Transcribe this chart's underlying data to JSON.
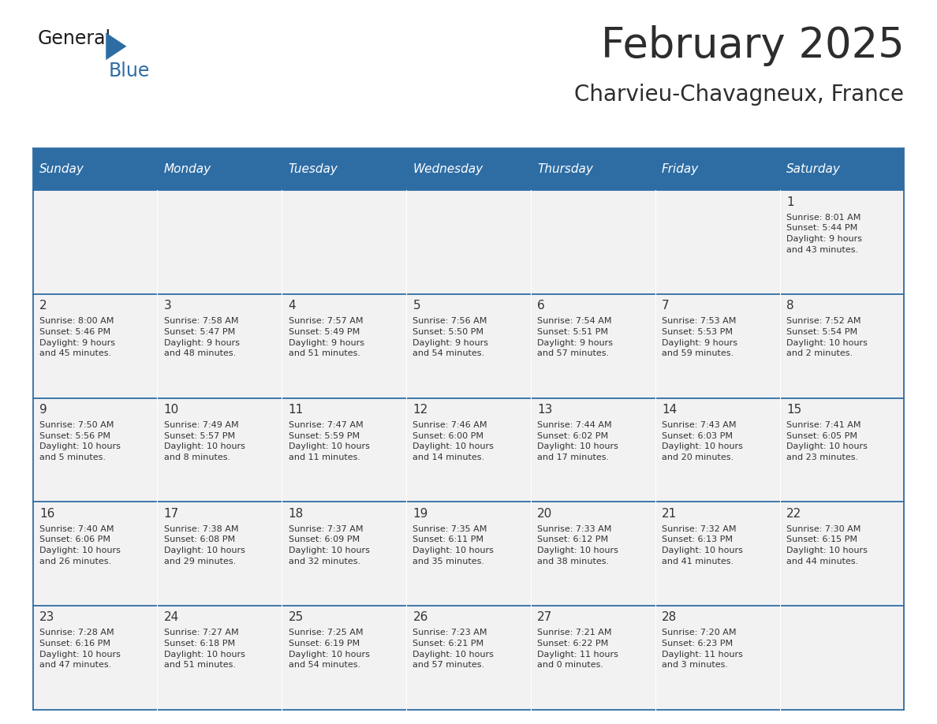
{
  "title": "February 2025",
  "subtitle": "Charvieu-Chavagneux, France",
  "header_bg": "#2E6DA4",
  "header_text": "#FFFFFF",
  "cell_bg": "#F2F2F2",
  "border_color": "#2E6DA4",
  "text_color": "#333333",
  "days_of_week": [
    "Sunday",
    "Monday",
    "Tuesday",
    "Wednesday",
    "Thursday",
    "Friday",
    "Saturday"
  ],
  "calendar": [
    [
      null,
      null,
      null,
      null,
      null,
      null,
      {
        "day": "1",
        "sunrise": "8:01 AM",
        "sunset": "5:44 PM",
        "daylight": "9 hours\nand 43 minutes."
      }
    ],
    [
      {
        "day": "2",
        "sunrise": "8:00 AM",
        "sunset": "5:46 PM",
        "daylight": "9 hours\nand 45 minutes."
      },
      {
        "day": "3",
        "sunrise": "7:58 AM",
        "sunset": "5:47 PM",
        "daylight": "9 hours\nand 48 minutes."
      },
      {
        "day": "4",
        "sunrise": "7:57 AM",
        "sunset": "5:49 PM",
        "daylight": "9 hours\nand 51 minutes."
      },
      {
        "day": "5",
        "sunrise": "7:56 AM",
        "sunset": "5:50 PM",
        "daylight": "9 hours\nand 54 minutes."
      },
      {
        "day": "6",
        "sunrise": "7:54 AM",
        "sunset": "5:51 PM",
        "daylight": "9 hours\nand 57 minutes."
      },
      {
        "day": "7",
        "sunrise": "7:53 AM",
        "sunset": "5:53 PM",
        "daylight": "9 hours\nand 59 minutes."
      },
      {
        "day": "8",
        "sunrise": "7:52 AM",
        "sunset": "5:54 PM",
        "daylight": "10 hours\nand 2 minutes."
      }
    ],
    [
      {
        "day": "9",
        "sunrise": "7:50 AM",
        "sunset": "5:56 PM",
        "daylight": "10 hours\nand 5 minutes."
      },
      {
        "day": "10",
        "sunrise": "7:49 AM",
        "sunset": "5:57 PM",
        "daylight": "10 hours\nand 8 minutes."
      },
      {
        "day": "11",
        "sunrise": "7:47 AM",
        "sunset": "5:59 PM",
        "daylight": "10 hours\nand 11 minutes."
      },
      {
        "day": "12",
        "sunrise": "7:46 AM",
        "sunset": "6:00 PM",
        "daylight": "10 hours\nand 14 minutes."
      },
      {
        "day": "13",
        "sunrise": "7:44 AM",
        "sunset": "6:02 PM",
        "daylight": "10 hours\nand 17 minutes."
      },
      {
        "day": "14",
        "sunrise": "7:43 AM",
        "sunset": "6:03 PM",
        "daylight": "10 hours\nand 20 minutes."
      },
      {
        "day": "15",
        "sunrise": "7:41 AM",
        "sunset": "6:05 PM",
        "daylight": "10 hours\nand 23 minutes."
      }
    ],
    [
      {
        "day": "16",
        "sunrise": "7:40 AM",
        "sunset": "6:06 PM",
        "daylight": "10 hours\nand 26 minutes."
      },
      {
        "day": "17",
        "sunrise": "7:38 AM",
        "sunset": "6:08 PM",
        "daylight": "10 hours\nand 29 minutes."
      },
      {
        "day": "18",
        "sunrise": "7:37 AM",
        "sunset": "6:09 PM",
        "daylight": "10 hours\nand 32 minutes."
      },
      {
        "day": "19",
        "sunrise": "7:35 AM",
        "sunset": "6:11 PM",
        "daylight": "10 hours\nand 35 minutes."
      },
      {
        "day": "20",
        "sunrise": "7:33 AM",
        "sunset": "6:12 PM",
        "daylight": "10 hours\nand 38 minutes."
      },
      {
        "day": "21",
        "sunrise": "7:32 AM",
        "sunset": "6:13 PM",
        "daylight": "10 hours\nand 41 minutes."
      },
      {
        "day": "22",
        "sunrise": "7:30 AM",
        "sunset": "6:15 PM",
        "daylight": "10 hours\nand 44 minutes."
      }
    ],
    [
      {
        "day": "23",
        "sunrise": "7:28 AM",
        "sunset": "6:16 PM",
        "daylight": "10 hours\nand 47 minutes."
      },
      {
        "day": "24",
        "sunrise": "7:27 AM",
        "sunset": "6:18 PM",
        "daylight": "10 hours\nand 51 minutes."
      },
      {
        "day": "25",
        "sunrise": "7:25 AM",
        "sunset": "6:19 PM",
        "daylight": "10 hours\nand 54 minutes."
      },
      {
        "day": "26",
        "sunrise": "7:23 AM",
        "sunset": "6:21 PM",
        "daylight": "10 hours\nand 57 minutes."
      },
      {
        "day": "27",
        "sunrise": "7:21 AM",
        "sunset": "6:22 PM",
        "daylight": "11 hours\nand 0 minutes."
      },
      {
        "day": "28",
        "sunrise": "7:20 AM",
        "sunset": "6:23 PM",
        "daylight": "11 hours\nand 3 minutes."
      },
      null
    ]
  ],
  "fig_width": 11.88,
  "fig_height": 9.18,
  "dpi": 100
}
